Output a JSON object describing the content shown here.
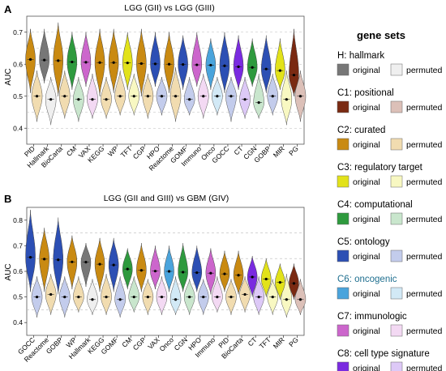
{
  "chart_data": [
    {
      "type": "violin",
      "panel_label": "A",
      "title": "LGG (GII) vs LGG (GIII)",
      "ylabel": "AUC",
      "ylim": [
        0.35,
        0.75
      ],
      "yticks": [
        0.4,
        0.5,
        0.6,
        0.7
      ],
      "grid": "dashed horizontal at 0.4, 0.45, 0.5, 0.55, 0.6, 0.65, 0.7",
      "categories": [
        "PID",
        "Hallmark",
        "BioCarta",
        "CM",
        "VAX",
        "KEGG",
        "WP",
        "TFT",
        "CGP",
        "HPO",
        "Reactome",
        "GOMF",
        "Immuno",
        "Onco",
        "GOCC",
        "CT",
        "CGN",
        "GOBP",
        "MIR",
        "PG"
      ],
      "collection": [
        "C2",
        "H",
        "C2",
        "C4",
        "C7",
        "C2",
        "C2",
        "C3",
        "C2",
        "C5",
        "C2",
        "C5",
        "C7",
        "C6",
        "C5",
        "C8",
        "C4",
        "C5",
        "C3",
        "C1"
      ],
      "series": [
        {
          "name": "original",
          "median": [
            0.615,
            0.613,
            0.611,
            0.607,
            0.606,
            0.605,
            0.605,
            0.604,
            0.602,
            0.601,
            0.6,
            0.599,
            0.598,
            0.597,
            0.595,
            0.592,
            0.59,
            0.585,
            0.58,
            0.566
          ],
          "min": [
            0.51,
            0.54,
            0.5,
            0.52,
            0.53,
            0.5,
            0.51,
            0.52,
            0.5,
            0.53,
            0.51,
            0.52,
            0.53,
            0.52,
            0.51,
            0.52,
            0.53,
            0.51,
            0.52,
            0.5
          ],
          "max": [
            0.71,
            0.71,
            0.73,
            0.7,
            0.7,
            0.71,
            0.71,
            0.7,
            0.71,
            0.7,
            0.7,
            0.69,
            0.7,
            0.68,
            0.7,
            0.69,
            0.68,
            0.69,
            0.68,
            0.71
          ]
        },
        {
          "name": "permuted",
          "median": [
            0.5,
            0.49,
            0.5,
            0.49,
            0.49,
            0.49,
            0.5,
            0.5,
            0.5,
            0.5,
            0.5,
            0.49,
            0.5,
            0.5,
            0.5,
            0.49,
            0.48,
            0.5,
            0.49,
            0.5
          ],
          "min": [
            0.42,
            0.41,
            0.43,
            0.42,
            0.43,
            0.43,
            0.44,
            0.44,
            0.43,
            0.44,
            0.42,
            0.44,
            0.43,
            0.44,
            0.42,
            0.43,
            0.43,
            0.44,
            0.41,
            0.42
          ],
          "max": [
            0.58,
            0.56,
            0.58,
            0.56,
            0.57,
            0.56,
            0.58,
            0.57,
            0.57,
            0.56,
            0.59,
            0.56,
            0.57,
            0.56,
            0.56,
            0.56,
            0.57,
            0.57,
            0.58,
            0.58
          ]
        }
      ]
    },
    {
      "type": "violin",
      "panel_label": "B",
      "title": "LGG (GII and GIII) vs GBM (GIV)",
      "ylabel": "AUC",
      "ylim": [
        0.35,
        0.85
      ],
      "yticks": [
        0.4,
        0.5,
        0.6,
        0.7,
        0.8
      ],
      "grid": "dashed horizontal at 0.45, 0.55, 0.65, 0.75",
      "categories": [
        "GOCC",
        "Reactome",
        "GOBP",
        "WP",
        "Hallmark",
        "KEGG",
        "GOMF",
        "CM",
        "CGP",
        "VAX",
        "Onco",
        "CGN",
        "HPO",
        "Immuno",
        "PID",
        "BioCarta",
        "CT",
        "TFT",
        "MIR",
        "PG"
      ],
      "collection": [
        "C5",
        "C2",
        "C5",
        "C2",
        "H",
        "C2",
        "C5",
        "C4",
        "C2",
        "C7",
        "C6",
        "C4",
        "C5",
        "C7",
        "C2",
        "C2",
        "C8",
        "C3",
        "C3",
        "C1"
      ],
      "series": [
        {
          "name": "original",
          "median": [
            0.655,
            0.648,
            0.645,
            0.637,
            0.636,
            0.628,
            0.625,
            0.609,
            0.604,
            0.601,
            0.6,
            0.597,
            0.595,
            0.593,
            0.59,
            0.585,
            0.578,
            0.57,
            0.557,
            0.553
          ],
          "min": [
            0.52,
            0.52,
            0.51,
            0.53,
            0.54,
            0.52,
            0.52,
            0.53,
            0.52,
            0.53,
            0.52,
            0.52,
            0.52,
            0.51,
            0.52,
            0.51,
            0.5,
            0.5,
            0.49,
            0.49
          ],
          "max": [
            0.84,
            0.77,
            0.81,
            0.74,
            0.71,
            0.73,
            0.73,
            0.69,
            0.71,
            0.7,
            0.7,
            0.71,
            0.7,
            0.69,
            0.68,
            0.68,
            0.66,
            0.65,
            0.63,
            0.63
          ]
        },
        {
          "name": "permuted",
          "median": [
            0.5,
            0.51,
            0.5,
            0.5,
            0.49,
            0.5,
            0.49,
            0.5,
            0.5,
            0.5,
            0.49,
            0.5,
            0.5,
            0.5,
            0.5,
            0.51,
            0.5,
            0.5,
            0.49,
            0.49
          ],
          "min": [
            0.42,
            0.43,
            0.42,
            0.44,
            0.43,
            0.43,
            0.42,
            0.44,
            0.43,
            0.43,
            0.43,
            0.43,
            0.43,
            0.44,
            0.43,
            0.44,
            0.43,
            0.43,
            0.42,
            0.43
          ],
          "max": [
            0.58,
            0.59,
            0.58,
            0.58,
            0.57,
            0.59,
            0.58,
            0.58,
            0.57,
            0.58,
            0.58,
            0.57,
            0.57,
            0.58,
            0.57,
            0.58,
            0.58,
            0.57,
            0.59,
            0.57
          ]
        }
      ]
    }
  ],
  "legend": {
    "title": "gene sets",
    "original_label": "original",
    "permuted_label": "permuted",
    "groups": [
      {
        "key": "H",
        "name": "H: hallmark",
        "name_color": "#000000",
        "color": "#777777",
        "permuted_color": "#efefef"
      },
      {
        "key": "C1",
        "name": "C1: positional",
        "name_color": "#000000",
        "color": "#7a2a12",
        "permuted_color": "#dcc0b8"
      },
      {
        "key": "C2",
        "name": "C2: curated",
        "name_color": "#000000",
        "color": "#c98a12",
        "permuted_color": "#f1dcb0"
      },
      {
        "key": "C3",
        "name": "C3: regulatory target",
        "name_color": "#000000",
        "color": "#e2e21a",
        "permuted_color": "#f8f8c2"
      },
      {
        "key": "C4",
        "name": "C4: computational",
        "name_color": "#000000",
        "color": "#2e9a3e",
        "permuted_color": "#c9e6cd"
      },
      {
        "key": "C5",
        "name": "C5: ontology",
        "name_color": "#000000",
        "color": "#2c4fb4",
        "permuted_color": "#c3ccec"
      },
      {
        "key": "C6",
        "name": "C6: oncogenic",
        "name_color": "#1f6f8f",
        "color": "#4aa4dc",
        "permuted_color": "#d2e9f6"
      },
      {
        "key": "C7",
        "name": "C7: immunologic",
        "name_color": "#000000",
        "color": "#cc66cc",
        "permuted_color": "#f3d9f3"
      },
      {
        "key": "C8",
        "name": "C8: cell type signature",
        "name_color": "#000000",
        "color": "#7a2be0",
        "permuted_color": "#ddc9f7"
      }
    ]
  }
}
